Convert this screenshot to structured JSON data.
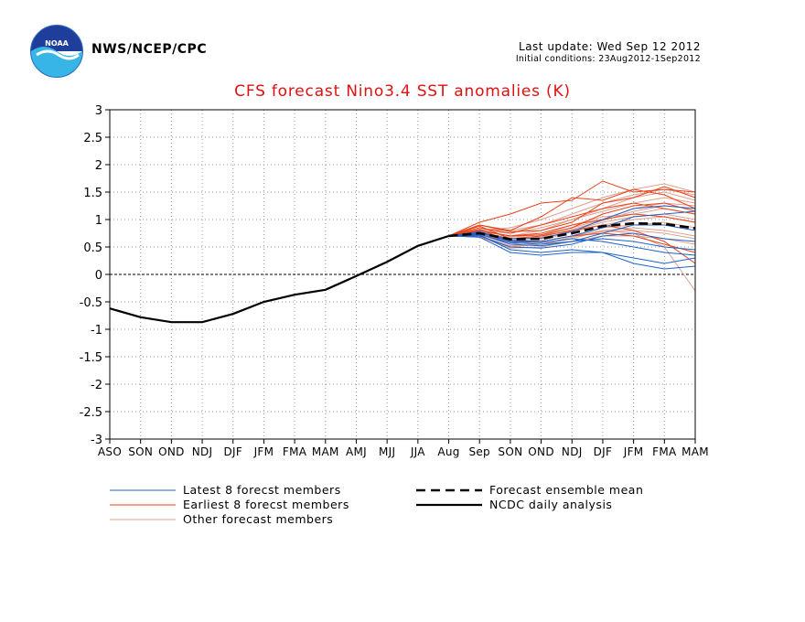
{
  "header": {
    "org": "NWS/NCEP/CPC",
    "last_update": "Last update: Wed Sep 12 2012",
    "initial_conditions": "Initial conditions: 23Aug2012-1Sep2012"
  },
  "colors": {
    "title": "#e01010",
    "latest_members": "#1f63c7",
    "earliest_members": "#e8431a",
    "other_members": "#e0a08f",
    "analysis": "#000000",
    "grid": "#999999"
  },
  "chart_data": {
    "type": "line",
    "title": "CFS forecast Nino3.4 SST anomalies (K)",
    "categories": [
      "ASO",
      "SON",
      "OND",
      "NDJ",
      "DJF",
      "JFM",
      "FMA",
      "MAM",
      "AMJ",
      "MJJ",
      "JJA",
      "Aug",
      "Sep",
      "SON",
      "OND",
      "NDJ",
      "DJF",
      "JFM",
      "FMA",
      "MAM"
    ],
    "ylim": [
      -3,
      3
    ],
    "yticks": [
      "3",
      "2.5",
      "2",
      "1.5",
      "1",
      "0.5",
      "0",
      "-0.5",
      "-1",
      "-1.5",
      "-2",
      "-2.5",
      "-3"
    ],
    "grid": true,
    "analysis": {
      "name": "NCDC daily analysis",
      "values": [
        -0.62,
        -0.78,
        -0.87,
        -0.87,
        -0.72,
        -0.5,
        -0.37,
        -0.28,
        -0.03,
        0.23,
        0.52,
        0.7
      ]
    },
    "ensemble_mean": {
      "name": "Forecast ensemble mean",
      "start_index": 11,
      "values": [
        0.7,
        0.75,
        0.64,
        0.65,
        0.75,
        0.88,
        0.93,
        0.92,
        0.84
      ]
    },
    "latest_members": {
      "name": "Latest 8 forecst members",
      "start_index": 11,
      "values": [
        [
          0.7,
          0.68,
          0.4,
          0.35,
          0.4,
          0.4,
          0.2,
          0.1,
          0.15
        ],
        [
          0.7,
          0.72,
          0.45,
          0.4,
          0.45,
          0.4,
          0.3,
          0.2,
          0.3
        ],
        [
          0.7,
          0.7,
          0.5,
          0.48,
          0.55,
          0.7,
          0.75,
          0.65,
          0.6
        ],
        [
          0.7,
          0.74,
          0.55,
          0.52,
          0.6,
          0.75,
          0.9,
          0.9,
          0.8
        ],
        [
          0.7,
          0.76,
          0.6,
          0.58,
          0.65,
          0.6,
          0.5,
          0.4,
          0.35
        ],
        [
          0.7,
          0.78,
          0.62,
          0.6,
          0.7,
          0.85,
          1.05,
          1.1,
          1.15
        ],
        [
          0.7,
          0.73,
          0.58,
          0.55,
          0.6,
          0.65,
          0.6,
          0.5,
          0.45
        ],
        [
          0.7,
          0.75,
          0.65,
          0.66,
          0.78,
          1.0,
          1.2,
          1.25,
          1.2
        ]
      ]
    },
    "earliest_members": {
      "name": "Earliest 8 forecst members",
      "start_index": 11,
      "values": [
        [
          0.7,
          0.95,
          1.1,
          1.3,
          1.35,
          1.7,
          1.5,
          1.55,
          1.5
        ],
        [
          0.7,
          0.9,
          0.8,
          1.05,
          1.4,
          1.35,
          1.55,
          1.45,
          1.2
        ],
        [
          0.7,
          0.85,
          0.75,
          0.9,
          1.05,
          1.2,
          1.3,
          1.2,
          1.1
        ],
        [
          0.7,
          0.8,
          0.7,
          0.75,
          0.9,
          1.0,
          1.1,
          1.05,
          0.95
        ],
        [
          0.7,
          0.88,
          0.65,
          0.7,
          0.8,
          0.9,
          0.8,
          0.6,
          0.2
        ],
        [
          0.7,
          0.82,
          0.6,
          0.6,
          0.7,
          0.75,
          0.7,
          0.55,
          0.4
        ],
        [
          0.7,
          0.8,
          0.7,
          0.72,
          0.85,
          1.1,
          1.25,
          1.3,
          1.15
        ],
        [
          0.7,
          0.9,
          0.78,
          0.8,
          0.95,
          1.3,
          1.4,
          1.6,
          1.4
        ]
      ]
    },
    "other_members": {
      "name": "Other forecast members",
      "start_index": 11,
      "values": [
        [
          0.7,
          0.8,
          0.85,
          1.0,
          1.2,
          1.4,
          1.55,
          1.65,
          1.5
        ],
        [
          0.7,
          0.78,
          0.7,
          0.8,
          1.0,
          1.2,
          1.4,
          1.5,
          1.35
        ],
        [
          0.7,
          0.76,
          0.65,
          0.7,
          0.85,
          1.0,
          1.2,
          1.3,
          1.25
        ],
        [
          0.7,
          0.74,
          0.6,
          0.65,
          0.8,
          0.95,
          1.05,
          1.1,
          1.0
        ],
        [
          0.7,
          0.72,
          0.55,
          0.6,
          0.7,
          0.85,
          0.9,
          0.95,
          0.85
        ],
        [
          0.7,
          0.7,
          0.5,
          0.55,
          0.65,
          0.8,
          0.85,
          0.8,
          0.7
        ],
        [
          0.7,
          0.68,
          0.48,
          0.5,
          0.6,
          0.7,
          0.7,
          0.65,
          0.55
        ],
        [
          0.7,
          0.76,
          0.62,
          0.6,
          0.7,
          0.8,
          0.75,
          0.5,
          -0.3
        ],
        [
          0.7,
          0.8,
          0.75,
          0.85,
          1.0,
          1.15,
          1.3,
          1.4,
          1.3
        ],
        [
          0.7,
          0.82,
          0.8,
          0.9,
          1.1,
          1.3,
          1.45,
          1.55,
          1.45
        ],
        [
          0.7,
          0.75,
          0.68,
          0.72,
          0.9,
          1.05,
          1.1,
          1.2,
          1.1
        ],
        [
          0.7,
          0.72,
          0.58,
          0.62,
          0.78,
          0.9,
          1.0,
          1.05,
          0.95
        ],
        [
          0.7,
          0.7,
          0.52,
          0.55,
          0.68,
          0.78,
          0.8,
          0.75,
          0.65
        ],
        [
          0.7,
          0.74,
          0.62,
          0.68,
          0.82,
          0.98,
          1.15,
          1.25,
          1.2
        ]
      ]
    },
    "legend": [
      {
        "label": "Latest 8 forecst members",
        "style": "latest"
      },
      {
        "label": "Earliest 8 forecst members",
        "style": "earliest"
      },
      {
        "label": "Other forecast members",
        "style": "other"
      },
      {
        "label": "Forecast ensemble mean",
        "style": "mean"
      },
      {
        "label": "NCDC daily analysis",
        "style": "analysis"
      }
    ]
  }
}
